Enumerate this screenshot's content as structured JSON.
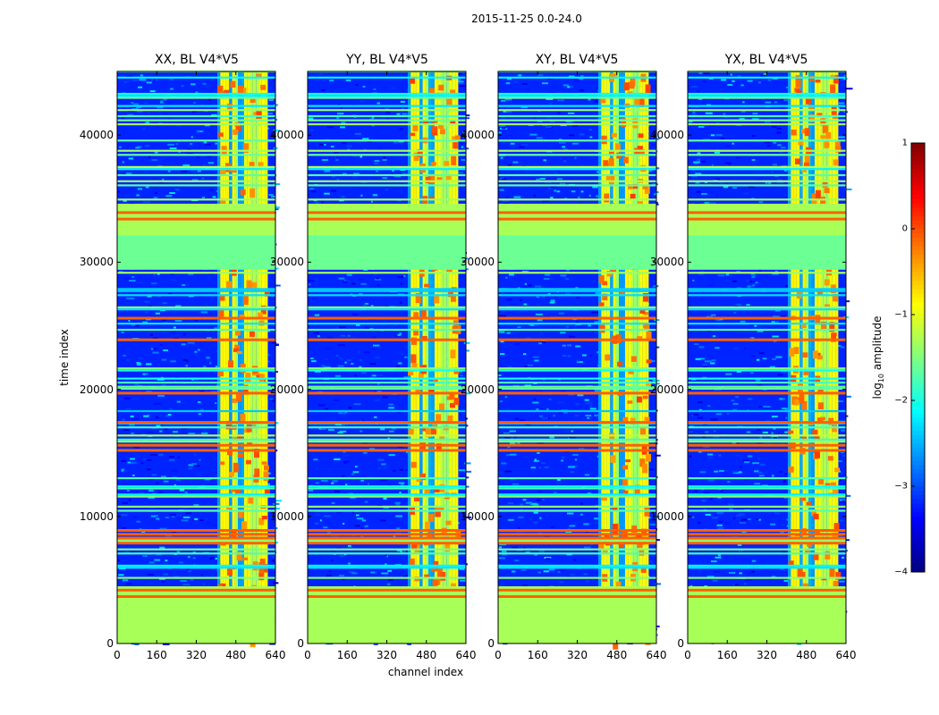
{
  "chart_data": {
    "type": "heatmap",
    "suptitle": "2015-11-25 0.0-24.0",
    "xlabel": "channel index",
    "ylabel": "time index",
    "xlim": [
      0,
      640
    ],
    "ylim": [
      0,
      45000
    ],
    "xticks": [
      0,
      160,
      320,
      480,
      640
    ],
    "xtick_labels": [
      "0",
      "160",
      "320",
      "480",
      "640"
    ],
    "yticks": [
      0,
      10000,
      20000,
      30000,
      40000
    ],
    "ytick_labels": [
      "0",
      "10000",
      "20000",
      "30000",
      "40000"
    ],
    "panels": [
      {
        "title": "XX, BL V4*V5",
        "polarization": "XX"
      },
      {
        "title": "YY, BL V4*V5",
        "polarization": "YY"
      },
      {
        "title": "XY, BL V4*V5",
        "polarization": "XY"
      },
      {
        "title": "YX, BL V4*V5",
        "polarization": "YX"
      }
    ],
    "colorbar": {
      "label": "log10 amplitude",
      "label_main": "log",
      "label_sub": "10",
      "label_rest": " amplitude",
      "colormap": "jet",
      "vmin": -4,
      "vmax": 1,
      "ticks": [
        -4,
        -3,
        -2,
        -1,
        0,
        1
      ],
      "tick_labels": [
        "−4",
        "−3",
        "−2",
        "−1",
        "0",
        "1"
      ]
    },
    "structure": {
      "background_log_amplitude": -3.2,
      "rfi_channel_band": [
        405,
        600
      ],
      "rfi_channel_band_level": -1.0,
      "broadband_blocks": [
        {
          "time_range": [
            0,
            1800
          ],
          "level": -1.3
        },
        {
          "time_range": [
            1800,
            4500
          ],
          "level": -1.3
        },
        {
          "time_range": [
            32100,
            34600
          ],
          "level": -1.3
        },
        {
          "time_range": [
            29500,
            32000
          ],
          "level": -1.6
        }
      ],
      "strong_time_rows": [
        3800,
        4300,
        8000,
        8400,
        8700,
        9000,
        15300,
        15700,
        17500,
        19800,
        24000,
        25700,
        33500,
        34000
      ]
    }
  }
}
